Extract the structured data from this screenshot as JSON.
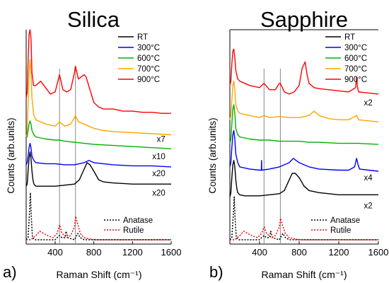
{
  "chart_data": [
    {
      "type": "line",
      "panel_label": "a)",
      "title": "Silica",
      "xlabel": "Raman Shift (cm⁻¹)",
      "ylabel": "Counts (arb.units)",
      "xlim": [
        100,
        1600
      ],
      "ylim": [
        0,
        100
      ],
      "x_ticks": [
        "400",
        "800",
        "1200",
        "1600"
      ],
      "y_ticks": false,
      "grid": false,
      "legend": {
        "placement": "top-right",
        "entries": [
          {
            "label": "RT",
            "color": "#000000"
          },
          {
            "label": "300°C",
            "color": "#0000ff"
          },
          {
            "label": "600°C",
            "color": "#00b000"
          },
          {
            "label": "700°C",
            "color": "#ffa500"
          },
          {
            "label": "900°C",
            "color": "#ff0000"
          }
        ]
      },
      "reference_legend": {
        "placement": "bottom-right",
        "entries": [
          {
            "label": "Anatase",
            "color": "#000000",
            "style": "dotted"
          },
          {
            "label": "Rutile",
            "color": "#ff0000",
            "style": "dotted"
          }
        ]
      },
      "vertical_lines_x": [
        445,
        610
      ],
      "series": [
        {
          "name": "900°C",
          "color": "#ff0000",
          "x": [
            100,
            110,
            120,
            130,
            140,
            150,
            160,
            175,
            200,
            250,
            300,
            350,
            400,
            445,
            480,
            520,
            560,
            600,
            610,
            640,
            700,
            720,
            760,
            800,
            850,
            900,
            1000,
            1100,
            1200,
            1300,
            1400,
            1500,
            1600
          ],
          "y": [
            68,
            71,
            85,
            98,
            100,
            96,
            80,
            74,
            74,
            76,
            73,
            70,
            71,
            79,
            72,
            71,
            72,
            80,
            83,
            77,
            79,
            78,
            72,
            66,
            64,
            63,
            63,
            62,
            62,
            61.5,
            61.5,
            61,
            61
          ]
        },
        {
          "name": "700°C",
          "color": "#ffa500",
          "x": [
            100,
            110,
            120,
            130,
            140,
            150,
            160,
            180,
            200,
            250,
            300,
            400,
            445,
            500,
            560,
            600,
            610,
            640,
            700,
            800,
            900,
            1000,
            1200,
            1400,
            1600
          ],
          "y": [
            50,
            52,
            65,
            80,
            86,
            80,
            68,
            60,
            58,
            57,
            56,
            55,
            57,
            55,
            56,
            59,
            60,
            57,
            56,
            54,
            53,
            52.5,
            52,
            51.5,
            51
          ]
        },
        {
          "name": "600°C",
          "color": "#00b000",
          "x": [
            100,
            110,
            120,
            130,
            140,
            150,
            160,
            180,
            200,
            300,
            400,
            445,
            500,
            600,
            700,
            800,
            1000,
            1200,
            1400,
            1600
          ],
          "y": [
            50,
            50,
            53,
            56,
            57.5,
            56,
            53,
            51,
            50,
            49,
            48.5,
            48.5,
            48,
            47.5,
            47,
            46.5,
            46,
            45.5,
            45,
            44.5
          ]
        },
        {
          "name": "300°C",
          "color": "#0000ff",
          "x": [
            100,
            110,
            120,
            130,
            140,
            150,
            160,
            180,
            200,
            300,
            400,
            500,
            600,
            700,
            750,
            800,
            1000,
            1200,
            1400,
            1600
          ],
          "y": [
            37,
            38,
            41,
            45,
            47,
            45,
            41,
            39,
            38,
            37.5,
            37.5,
            37,
            37,
            38,
            39,
            38,
            37,
            36.5,
            36.5,
            36
          ]
        },
        {
          "name": "RT",
          "color": "#000000",
          "x": [
            100,
            110,
            120,
            130,
            140,
            150,
            160,
            170,
            180,
            200,
            250,
            300,
            400,
            500,
            600,
            650,
            700,
            730,
            760,
            800,
            850,
            900,
            1000,
            1200,
            1400,
            1600
          ],
          "y": [
            27,
            28,
            34,
            40,
            43,
            40,
            34,
            30,
            28,
            27,
            27,
            27,
            27,
            27.5,
            28,
            30,
            35,
            38,
            37,
            34,
            30,
            29,
            28.5,
            28,
            28,
            28
          ]
        },
        {
          "name": "Anatase",
          "color": "#000000",
          "style": "dotted",
          "x": [
            100,
            120,
            135,
            144,
            153,
            165,
            190,
            240,
            300,
            380,
            400,
            420,
            445,
            470,
            500,
            513,
            530,
            600,
            635,
            660,
            700,
            800,
            1000,
            1200,
            1400,
            1600
          ],
          "y": [
            2,
            3,
            15,
            24,
            13,
            3,
            2,
            2,
            2,
            2,
            2,
            3,
            4,
            3,
            3,
            6,
            3,
            2,
            5,
            3,
            2,
            2,
            2,
            2,
            2,
            2
          ]
        },
        {
          "name": "Rutile",
          "color": "#ff0000",
          "style": "dotted",
          "x": [
            100,
            150,
            200,
            240,
            280,
            320,
            380,
            420,
            447,
            470,
            520,
            560,
            600,
            612,
            630,
            660,
            700,
            800,
            900,
            1000,
            1200,
            1400,
            1600
          ],
          "y": [
            2,
            2,
            4,
            6,
            5,
            4,
            3,
            5,
            9,
            5,
            3,
            4,
            8,
            13,
            10,
            5,
            3,
            2,
            2,
            2,
            2,
            2,
            2
          ]
        }
      ],
      "annotations": [
        {
          "text": "x7",
          "x": 1540,
          "y": 49
        },
        {
          "text": "x10",
          "x": 1540,
          "y": 41
        },
        {
          "text": "x20",
          "x": 1540,
          "y": 33
        },
        {
          "text": "x20",
          "x": 1540,
          "y": 24
        }
      ]
    },
    {
      "type": "line",
      "panel_label": "b)",
      "title": "Sapphire",
      "xlabel": "Raman Shift (cm⁻¹)",
      "ylabel": "Counts (arb.units)",
      "xlim": [
        100,
        1600
      ],
      "ylim": [
        0,
        100
      ],
      "x_ticks": [
        "400",
        "800",
        "1200",
        "1600"
      ],
      "y_ticks": false,
      "grid": false,
      "legend": {
        "placement": "top-right",
        "entries": [
          {
            "label": "RT",
            "color": "#000000"
          },
          {
            "label": "300°C",
            "color": "#0000ff"
          },
          {
            "label": "600°C",
            "color": "#00b000"
          },
          {
            "label": "700°C",
            "color": "#ffa500"
          },
          {
            "label": "900°C",
            "color": "#ff0000"
          }
        ]
      },
      "reference_legend": {
        "placement": "bottom-right",
        "entries": [
          {
            "label": "Anatase",
            "color": "#000000",
            "style": "dotted"
          },
          {
            "label": "Rutile",
            "color": "#ff0000",
            "style": "dotted"
          }
        ]
      },
      "vertical_lines_x": [
        445,
        610
      ],
      "series": [
        {
          "name": "900°C",
          "color": "#ff0000",
          "x": [
            100,
            110,
            120,
            130,
            140,
            150,
            160,
            180,
            200,
            300,
            400,
            445,
            500,
            560,
            600,
            610,
            650,
            700,
            750,
            800,
            830,
            860,
            880,
            900,
            950,
            1000,
            1100,
            1200,
            1300,
            1370,
            1380,
            1390,
            1400,
            1500,
            1600
          ],
          "y": [
            74,
            76,
            84,
            90,
            91,
            87,
            81,
            77,
            76,
            74,
            73,
            75,
            72,
            72,
            75,
            75,
            71,
            70,
            71,
            74,
            82,
            85,
            79,
            75,
            73,
            72.5,
            72,
            71.5,
            71,
            73,
            78,
            73,
            71,
            70.5,
            70
          ]
        },
        {
          "name": "700°C",
          "color": "#ffa500",
          "x": [
            100,
            110,
            120,
            130,
            140,
            150,
            160,
            180,
            200,
            300,
            400,
            445,
            500,
            600,
            700,
            800,
            900,
            950,
            1000,
            1100,
            1200,
            1300,
            1380,
            1400,
            1500,
            1600
          ],
          "y": [
            58,
            60,
            67,
            74,
            76,
            72,
            65,
            62,
            61,
            60,
            59,
            60,
            59,
            59.5,
            59,
            59,
            60,
            62,
            60,
            58.5,
            58,
            58,
            60,
            58,
            57.5,
            57
          ]
        },
        {
          "name": "600°C",
          "color": "#00b000",
          "x": [
            100,
            110,
            120,
            130,
            140,
            150,
            160,
            180,
            200,
            300,
            400,
            500,
            600,
            700,
            800,
            900,
            1000,
            1200,
            1400,
            1600
          ],
          "y": [
            47,
            49,
            56,
            63,
            65,
            61,
            54,
            51,
            50,
            49,
            48.5,
            48.5,
            48,
            48,
            48,
            47.5,
            47.5,
            47,
            47,
            46.5
          ]
        },
        {
          "name": "300°C",
          "color": "#0000ff",
          "x": [
            100,
            110,
            120,
            130,
            140,
            150,
            160,
            180,
            200,
            300,
            400,
            418,
            420,
            422,
            500,
            600,
            700,
            740,
            800,
            900,
            1000,
            1200,
            1300,
            1360,
            1380,
            1395,
            1410,
            1500,
            1600
          ],
          "y": [
            36,
            38,
            45,
            51,
            53,
            49,
            42,
            38,
            36,
            35,
            34.5,
            34.5,
            39,
            34.5,
            35,
            36,
            38,
            40,
            38,
            36,
            35,
            34.5,
            34.5,
            36,
            40,
            37,
            35,
            34.5,
            34
          ]
        },
        {
          "name": "RT",
          "color": "#000000",
          "x": [
            100,
            110,
            120,
            130,
            140,
            150,
            160,
            170,
            180,
            200,
            250,
            300,
            400,
            500,
            600,
            650,
            700,
            730,
            760,
            800,
            850,
            900,
            1000,
            1200,
            1400,
            1600
          ],
          "y": [
            22,
            24,
            31,
            37,
            39,
            36,
            30,
            26,
            24,
            23,
            22.5,
            22.5,
            22.5,
            23,
            23.5,
            25,
            30,
            33,
            33,
            31,
            27,
            25,
            24,
            23,
            23,
            23
          ]
        },
        {
          "name": "Anatase",
          "color": "#000000",
          "style": "dotted",
          "x": [
            100,
            120,
            135,
            144,
            153,
            165,
            190,
            240,
            300,
            380,
            400,
            420,
            445,
            470,
            500,
            513,
            530,
            600,
            635,
            660,
            700,
            800,
            1000,
            1200,
            1400,
            1600
          ],
          "y": [
            2,
            3,
            14,
            22,
            12,
            3,
            2,
            2,
            2,
            2,
            2,
            3,
            4,
            3,
            3,
            6,
            3,
            2,
            5,
            3,
            2,
            2,
            2,
            2,
            2,
            2
          ]
        },
        {
          "name": "Rutile",
          "color": "#ff0000",
          "style": "dotted",
          "x": [
            100,
            150,
            200,
            240,
            280,
            320,
            380,
            420,
            447,
            470,
            520,
            560,
            600,
            612,
            630,
            660,
            700,
            800,
            900,
            1000,
            1200,
            1400,
            1600
          ],
          "y": [
            2,
            2,
            4,
            6,
            5,
            4,
            3,
            5,
            8,
            5,
            3,
            4,
            8,
            12,
            9,
            5,
            3,
            2,
            2,
            2,
            2,
            2,
            2
          ]
        }
      ],
      "annotations": [
        {
          "text": "x2",
          "x": 1540,
          "y": 66
        },
        {
          "text": "x4",
          "x": 1540,
          "y": 31
        },
        {
          "text": "x2",
          "x": 1540,
          "y": 18
        }
      ]
    }
  ]
}
